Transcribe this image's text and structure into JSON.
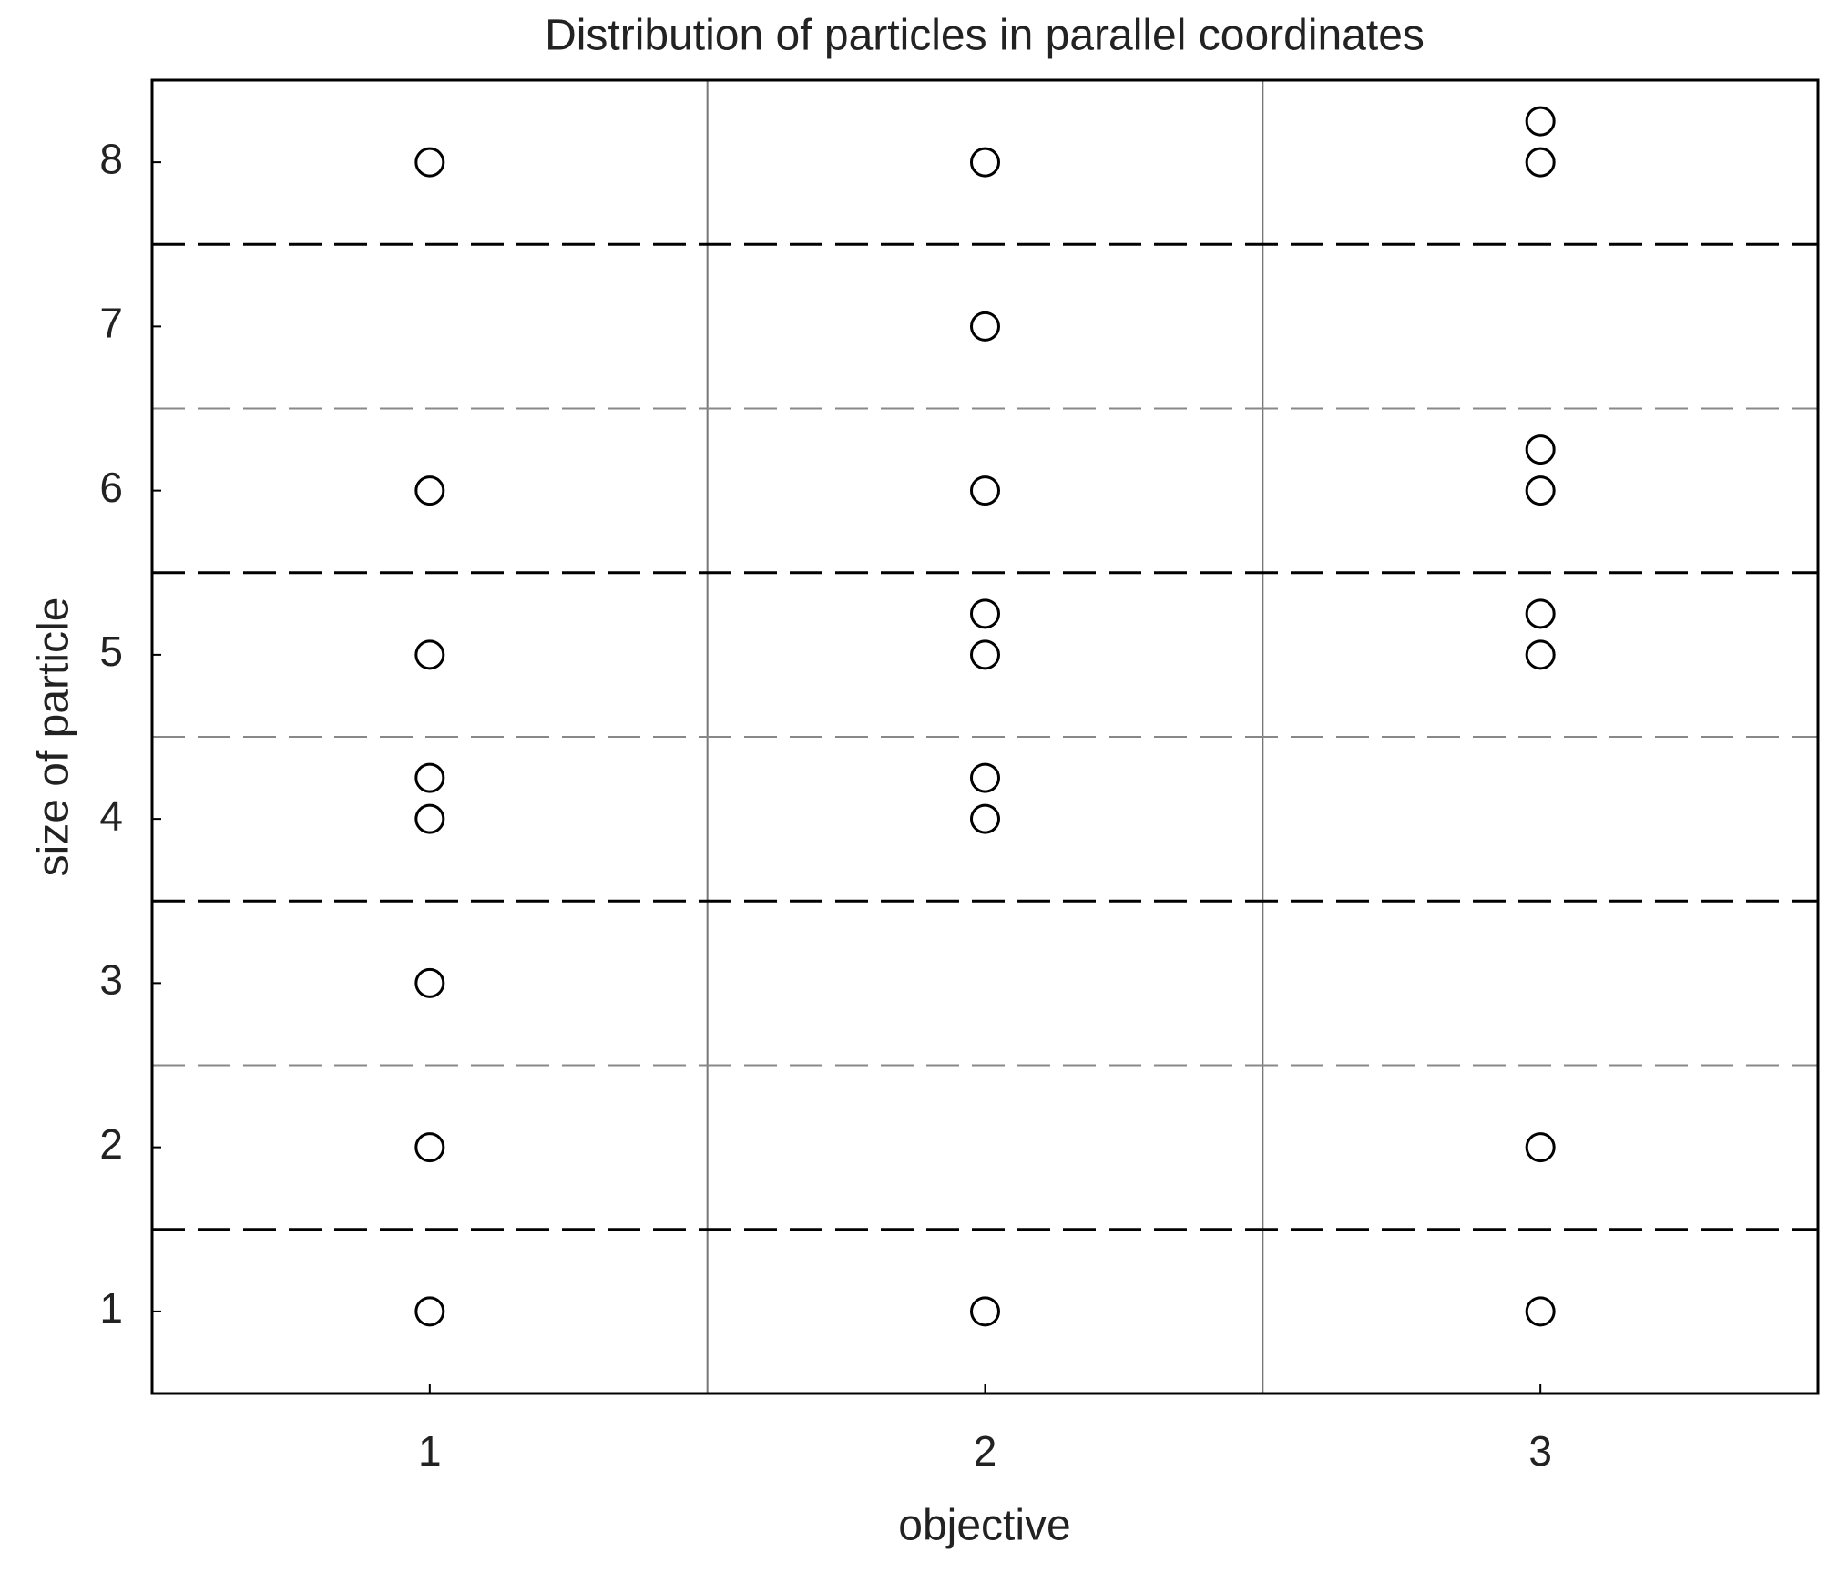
{
  "chart_data": {
    "type": "scatter",
    "title": "Distribution of particles in parallel coordinates",
    "x_label": "objective",
    "y_label": "size of particle",
    "x": [
      1,
      1,
      1,
      1,
      1,
      1,
      1,
      1,
      2,
      2,
      2,
      2,
      2,
      2,
      2,
      2,
      3,
      3,
      3,
      3,
      3,
      3,
      3,
      3
    ],
    "values": [
      8,
      6,
      5,
      4.25,
      4,
      3,
      2,
      1,
      8,
      7,
      6,
      5.25,
      5,
      4.25,
      4,
      1,
      8.25,
      8,
      6.25,
      6,
      5.25,
      5,
      2,
      1
    ],
    "color": "#000000",
    "xlim": [
      0.5,
      3.5
    ],
    "ylim": [
      0.5,
      8.5
    ],
    "xticks": [
      1,
      2,
      3
    ],
    "yticks": [
      1,
      2,
      3,
      4,
      5,
      6,
      7,
      8
    ],
    "grid": true
  }
}
